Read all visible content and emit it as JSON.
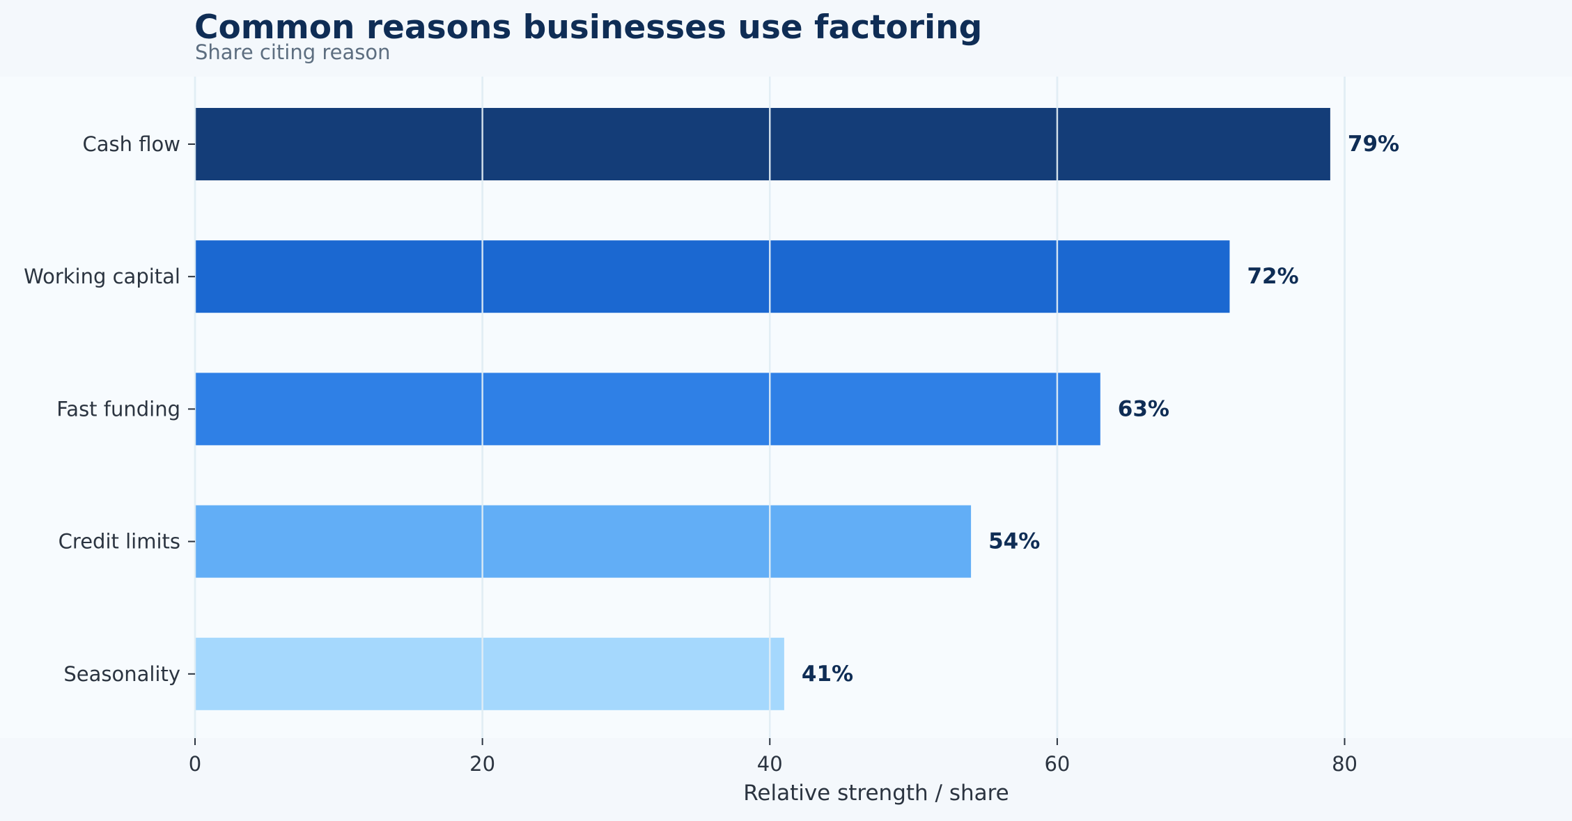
{
  "chart_data": {
    "type": "bar",
    "orientation": "horizontal",
    "title": "Common reasons businesses use factoring",
    "subtitle": "Share citing reason",
    "xlabel": "Relative strength / share",
    "ylabel": "",
    "xlim": [
      0,
      95
    ],
    "xticks": [
      0,
      20,
      40,
      60,
      80
    ],
    "categories": [
      "Cash flow",
      "Working capital",
      "Fast funding",
      "Credit limits",
      "Seasonality"
    ],
    "values": [
      79,
      72,
      63,
      54,
      41
    ],
    "value_labels": [
      "79%",
      "72%",
      "63%",
      "54%",
      "41%"
    ],
    "colors": [
      "#143d78",
      "#1b68d1",
      "#2f80e6",
      "#62aef6",
      "#a5d8fd"
    ],
    "grid": "vertical",
    "legend": "none"
  }
}
